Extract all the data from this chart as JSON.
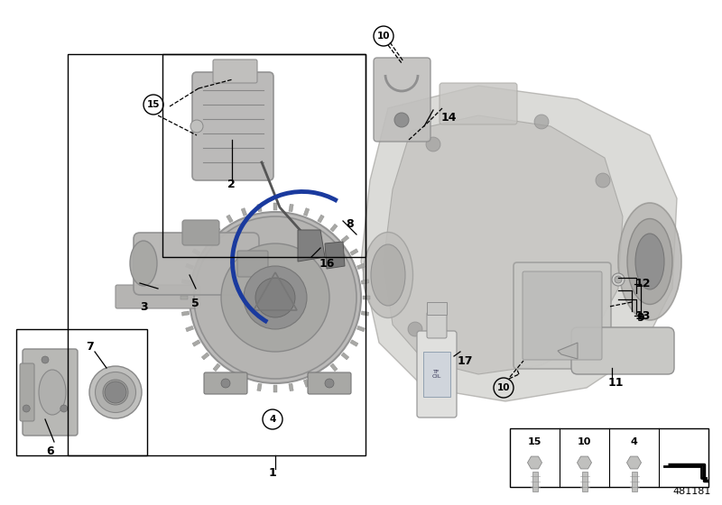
{
  "bg_color": "#ffffff",
  "part_number": "481181",
  "fig_w": 8.0,
  "fig_h": 5.6,
  "dpi": 100
}
